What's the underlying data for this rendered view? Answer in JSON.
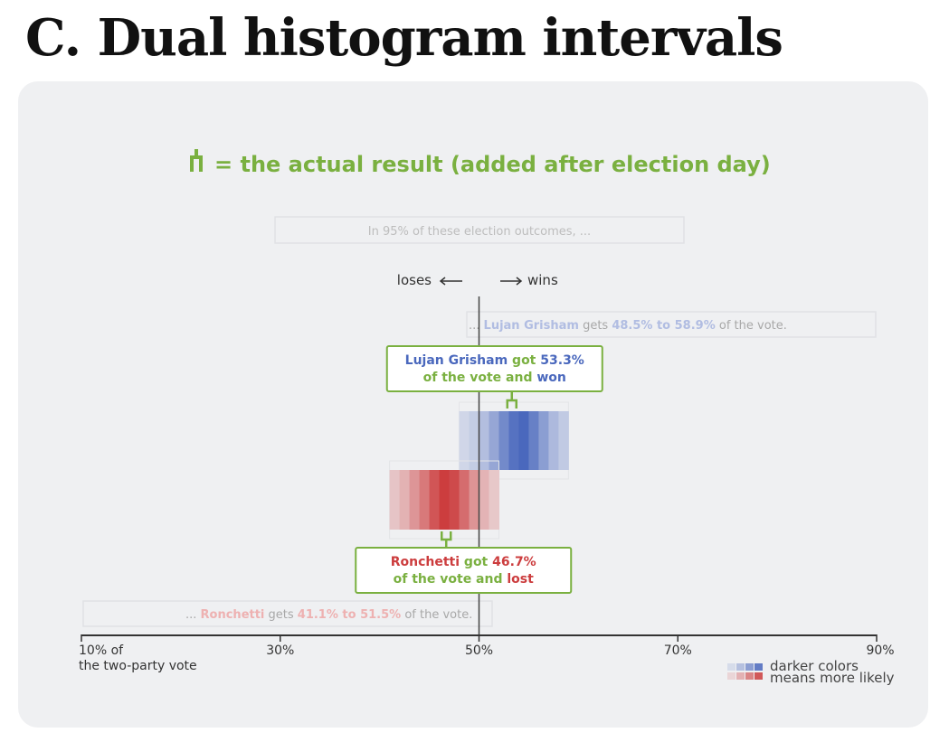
{
  "page": {
    "title": "C. Dual histogram intervals"
  },
  "colors": {
    "green": "#7ab040",
    "blue": "#4a68bd",
    "blue_light": "#b1bde2",
    "red": "#cc3d3e",
    "red_light": "#eeb1b1",
    "axis": "#333333",
    "muted_text": "#9a9a9a",
    "panel_bg": "#eff0f2"
  },
  "chart_data": {
    "type": "histogram-interval",
    "x_axis": {
      "range": [
        10,
        90
      ],
      "ticks": [
        10,
        30,
        50,
        70,
        90
      ],
      "tick_labels": [
        "10% of",
        "30%",
        "50%",
        "70%",
        "90%"
      ],
      "first_tick_sublabel": "the two-party vote",
      "threshold": 50
    },
    "legend": {
      "actual_label": "= the actual result (added after election day)",
      "gradient_line1": "darker colors",
      "gradient_line2": "means more likely"
    },
    "interval_header": "In 95% of these election outcomes, ...",
    "direction": {
      "loses": "loses",
      "wins": "wins"
    },
    "candidates": [
      {
        "key": "grisham",
        "name": "Lujan Grisham",
        "low": 48.5,
        "high": 58.9,
        "actual": 53.3,
        "outcome": "won",
        "interval_text": {
          "prefix": "... ",
          "mid": " gets ",
          "low_text": "48.5%",
          "to": " to ",
          "high_text": "58.9%",
          "suffix": " of the vote."
        },
        "callout": {
          "line1_mid": " got ",
          "value_text": "53.3%",
          "line2_prefix": "of the vote and ",
          "outcome_text": "won"
        },
        "density_bins": [
          {
            "x0": 48.0,
            "x1": 49.0,
            "d": 0.08
          },
          {
            "x0": 49.0,
            "x1": 50.0,
            "d": 0.16
          },
          {
            "x0": 50.0,
            "x1": 51.0,
            "d": 0.28
          },
          {
            "x0": 51.0,
            "x1": 52.0,
            "d": 0.48
          },
          {
            "x0": 52.0,
            "x1": 53.0,
            "d": 0.72
          },
          {
            "x0": 53.0,
            "x1": 54.0,
            "d": 0.92
          },
          {
            "x0": 54.0,
            "x1": 55.0,
            "d": 1.0
          },
          {
            "x0": 55.0,
            "x1": 56.0,
            "d": 0.8
          },
          {
            "x0": 56.0,
            "x1": 57.0,
            "d": 0.55
          },
          {
            "x0": 57.0,
            "x1": 58.0,
            "d": 0.32
          },
          {
            "x0": 58.0,
            "x1": 59.0,
            "d": 0.18
          }
        ]
      },
      {
        "key": "ronchetti",
        "name": "Ronchetti",
        "low": 41.1,
        "high": 51.5,
        "actual": 46.7,
        "outcome": "lost",
        "interval_text": {
          "prefix": "... ",
          "mid": " gets ",
          "low_text": "41.1%",
          "to": " to ",
          "high_text": "51.5%",
          "suffix": " of the vote."
        },
        "callout": {
          "line1_mid": " got ",
          "value_text": "46.7%",
          "line2_prefix": "of the vote and ",
          "outcome_text": "lost"
        },
        "density_bins": [
          {
            "x0": 41.0,
            "x1": 42.0,
            "d": 0.14
          },
          {
            "x0": 42.0,
            "x1": 43.0,
            "d": 0.26
          },
          {
            "x0": 43.0,
            "x1": 44.0,
            "d": 0.44
          },
          {
            "x0": 44.0,
            "x1": 45.0,
            "d": 0.62
          },
          {
            "x0": 45.0,
            "x1": 46.0,
            "d": 0.85
          },
          {
            "x0": 46.0,
            "x1": 47.0,
            "d": 1.0
          },
          {
            "x0": 47.0,
            "x1": 48.0,
            "d": 0.92
          },
          {
            "x0": 48.0,
            "x1": 49.0,
            "d": 0.7
          },
          {
            "x0": 49.0,
            "x1": 50.0,
            "d": 0.45
          },
          {
            "x0": 50.0,
            "x1": 51.0,
            "d": 0.25
          },
          {
            "x0": 51.0,
            "x1": 52.0,
            "d": 0.12
          }
        ]
      }
    ]
  }
}
